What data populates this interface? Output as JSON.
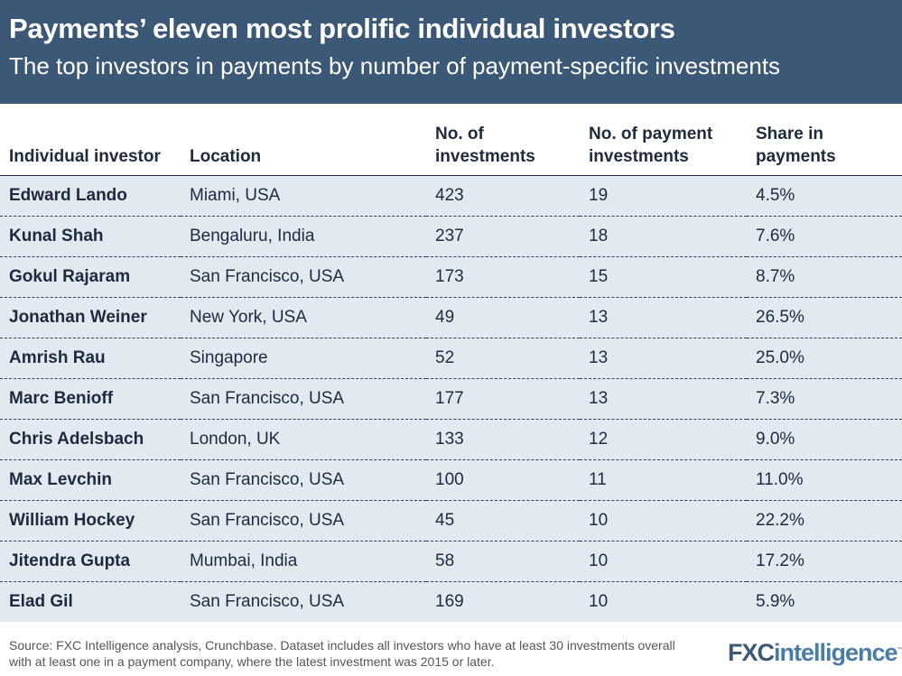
{
  "header": {
    "title": "Payments’ eleven most prolific individual investors",
    "subtitle": "The top investors in payments by number of payment-specific investments"
  },
  "chart_data": {
    "type": "table",
    "columns": [
      "Individual investor",
      "Location",
      "No. of investments",
      "No. of payment investments",
      "Share in payments"
    ],
    "rows": [
      [
        "Edward Lando",
        "Miami, USA",
        "423",
        "19",
        "4.5%"
      ],
      [
        "Kunal Shah",
        "Bengaluru, India",
        "237",
        "18",
        "7.6%"
      ],
      [
        "Gokul Rajaram",
        "San Francisco, USA",
        "173",
        "15",
        "8.7%"
      ],
      [
        "Jonathan Weiner",
        "New York, USA",
        "49",
        "13",
        "26.5%"
      ],
      [
        "Amrish Rau",
        "Singapore",
        "52",
        "13",
        "25.0%"
      ],
      [
        "Marc Benioff",
        "San Francisco, USA",
        "177",
        "13",
        "7.3%"
      ],
      [
        "Chris Adelsbach",
        "London, UK",
        "133",
        "12",
        "9.0%"
      ],
      [
        "Max Levchin",
        "San Francisco, USA",
        "100",
        "11",
        "11.0%"
      ],
      [
        "William Hockey",
        "San Francisco, USA",
        "45",
        "10",
        "22.2%"
      ],
      [
        "Jitendra Gupta",
        "Mumbai, India",
        "58",
        "10",
        "17.2%"
      ],
      [
        "Elad Gil",
        "San Francisco, USA",
        "169",
        "10",
        "5.9%"
      ]
    ]
  },
  "footer": {
    "source": "Source: FXC Intelligence analysis, Crunchbase. Dataset includes all investors who have at least 30 investments overall with at least one in a payment company, where the latest investment was 2015 or later.",
    "logo_fx": "FXC",
    "logo_intel": "intelligence"
  },
  "colors": {
    "banner": "#3b5876",
    "row": "#e2e9f0"
  }
}
